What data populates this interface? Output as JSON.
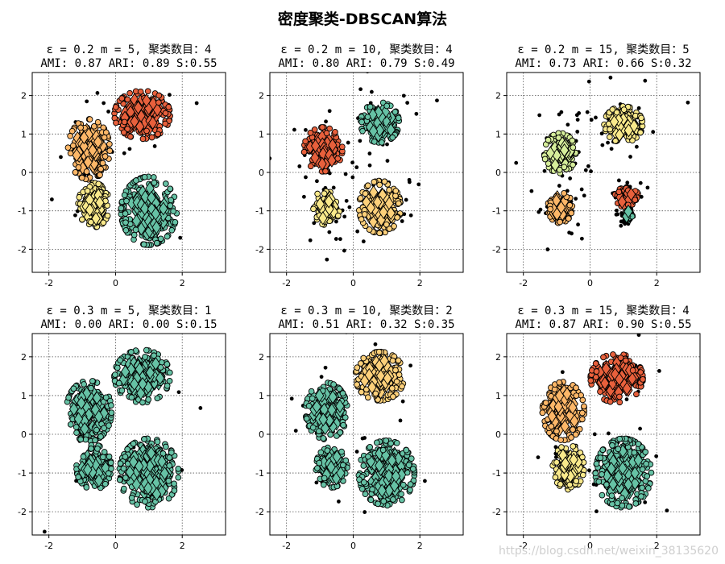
{
  "figure": {
    "title": "密度聚类-DBSCAN算法",
    "watermark": "https://blog.csdn.net/weixin_38135620"
  },
  "palette": {
    "noise": "#000000",
    "edge": "#000000",
    "cluster_colors": [
      "#e8603c",
      "#fdb768",
      "#f9e98b",
      "#d6ee9b",
      "#8fd4a4",
      "#5cb7a9",
      "#66c2a5"
    ]
  },
  "chart_data": [
    {
      "type": "scatter",
      "title_line1": "ε = 0.2  m = 5, 聚类数目：4",
      "title_line2": "AMI: 0.87 ARI: 0.89 S:0.55",
      "xlim": [
        -2.5,
        3.3
      ],
      "ylim": [
        -2.6,
        2.6
      ],
      "xticks": [
        "-2",
        "0",
        "2"
      ],
      "yticks": [
        "2",
        "1",
        "0",
        "-1",
        "-2"
      ],
      "grid": true,
      "clusters": [
        {
          "color": "#e8603c",
          "center": [
            0.8,
            1.5
          ],
          "spread": [
            0.8,
            0.6
          ]
        },
        {
          "color": "#fdb768",
          "center": [
            -0.8,
            0.6
          ],
          "spread": [
            0.6,
            0.75
          ]
        },
        {
          "color": "#f9e98b",
          "center": [
            -0.65,
            -0.85
          ],
          "spread": [
            0.45,
            0.55
          ]
        },
        {
          "color": "#66c2a5",
          "center": [
            1.0,
            -1.0
          ],
          "spread": [
            0.8,
            0.85
          ]
        }
      ]
    },
    {
      "type": "scatter",
      "title_line1": "ε = 0.2  m = 10, 聚类数目：4",
      "title_line2": "AMI: 0.80 ARI: 0.79 S:0.49",
      "xlim": [
        -2.5,
        3.3
      ],
      "ylim": [
        -2.6,
        2.6
      ],
      "xticks": [
        "-2",
        "0",
        "2"
      ],
      "yticks": [
        "2",
        "1",
        "0",
        "-1",
        "-2"
      ],
      "grid": true,
      "clusters": [
        {
          "color": "#66c2a5",
          "center": [
            0.8,
            1.3
          ],
          "spread": [
            0.55,
            0.5
          ]
        },
        {
          "color": "#e8603c",
          "center": [
            -0.9,
            0.6
          ],
          "spread": [
            0.55,
            0.55
          ]
        },
        {
          "color": "#f9e98b",
          "center": [
            -0.8,
            -0.9
          ],
          "spread": [
            0.38,
            0.45
          ]
        },
        {
          "color": "#fdd07a",
          "center": [
            0.8,
            -0.9
          ],
          "spread": [
            0.6,
            0.65
          ]
        }
      ]
    },
    {
      "type": "scatter",
      "title_line1": "ε = 0.2  m = 15, 聚类数目：5",
      "title_line2": "AMI: 0.73 ARI: 0.66 S:0.32",
      "xlim": [
        -2.5,
        3.3
      ],
      "ylim": [
        -2.6,
        2.6
      ],
      "xticks": [
        "-2",
        "0",
        "2"
      ],
      "yticks": [
        "2",
        "1",
        "0",
        "-1",
        "-2"
      ],
      "grid": true,
      "clusters": [
        {
          "color": "#f9e98b",
          "center": [
            1.0,
            1.25
          ],
          "spread": [
            0.55,
            0.45
          ]
        },
        {
          "color": "#d6ee9b",
          "center": [
            -0.9,
            0.5
          ],
          "spread": [
            0.45,
            0.5
          ]
        },
        {
          "color": "#fdb768",
          "center": [
            -0.9,
            -0.9
          ],
          "spread": [
            0.35,
            0.4
          ]
        },
        {
          "color": "#e8603c",
          "center": [
            1.1,
            -0.65
          ],
          "spread": [
            0.35,
            0.25
          ]
        },
        {
          "color": "#66c2a5",
          "center": [
            1.15,
            -1.1
          ],
          "spread": [
            0.12,
            0.12
          ]
        }
      ]
    },
    {
      "type": "scatter",
      "title_line1": "ε = 0.3  m = 5, 聚类数目：1",
      "title_line2": "AMI: 0.00 ARI: 0.00 S:0.15",
      "xlim": [
        -2.5,
        3.3
      ],
      "ylim": [
        -2.6,
        2.6
      ],
      "xticks": [
        "-2",
        "0",
        "2"
      ],
      "yticks": [
        "2",
        "1",
        "0",
        "-1",
        "-2"
      ],
      "grid": true,
      "clusters": [
        {
          "color": "#66c2a5",
          "center": [
            0.8,
            1.5
          ],
          "spread": [
            0.8,
            0.65
          ]
        },
        {
          "color": "#66c2a5",
          "center": [
            -0.8,
            0.6
          ],
          "spread": [
            0.65,
            0.75
          ]
        },
        {
          "color": "#66c2a5",
          "center": [
            -0.65,
            -0.85
          ],
          "spread": [
            0.5,
            0.55
          ]
        },
        {
          "color": "#66c2a5",
          "center": [
            1.0,
            -1.0
          ],
          "spread": [
            0.85,
            0.85
          ]
        }
      ]
    },
    {
      "type": "scatter",
      "title_line1": "ε = 0.3  m = 10, 聚类数目：2",
      "title_line2": "AMI: 0.51 ARI: 0.32 S:0.35",
      "xlim": [
        -2.5,
        3.3
      ],
      "ylim": [
        -2.6,
        2.6
      ],
      "xticks": [
        "-2",
        "0",
        "2"
      ],
      "yticks": [
        "2",
        "1",
        "0",
        "-1",
        "-2"
      ],
      "grid": true,
      "clusters": [
        {
          "color": "#fdd07a",
          "center": [
            0.8,
            1.5
          ],
          "spread": [
            0.7,
            0.6
          ]
        },
        {
          "color": "#66c2a5",
          "center": [
            -0.8,
            0.6
          ],
          "spread": [
            0.6,
            0.7
          ]
        },
        {
          "color": "#66c2a5",
          "center": [
            -0.65,
            -0.85
          ],
          "spread": [
            0.45,
            0.5
          ]
        },
        {
          "color": "#66c2a5",
          "center": [
            1.0,
            -1.0
          ],
          "spread": [
            0.8,
            0.8
          ]
        }
      ]
    },
    {
      "type": "scatter",
      "title_line1": "ε = 0.3  m = 15, 聚类数目：4",
      "title_line2": "AMI: 0.87 ARI: 0.90 S:0.55",
      "xlim": [
        -2.5,
        3.3
      ],
      "ylim": [
        -2.6,
        2.6
      ],
      "xticks": [
        "-2",
        "0",
        "2"
      ],
      "yticks": [
        "2",
        "1",
        "0",
        "-1",
        "-2"
      ],
      "grid": true,
      "clusters": [
        {
          "color": "#e8603c",
          "center": [
            0.8,
            1.45
          ],
          "spread": [
            0.75,
            0.6
          ]
        },
        {
          "color": "#fdb768",
          "center": [
            -0.8,
            0.6
          ],
          "spread": [
            0.6,
            0.72
          ]
        },
        {
          "color": "#f9e98b",
          "center": [
            -0.65,
            -0.85
          ],
          "spread": [
            0.45,
            0.55
          ]
        },
        {
          "color": "#66c2a5",
          "center": [
            1.0,
            -1.0
          ],
          "spread": [
            0.8,
            0.85
          ]
        }
      ]
    }
  ]
}
